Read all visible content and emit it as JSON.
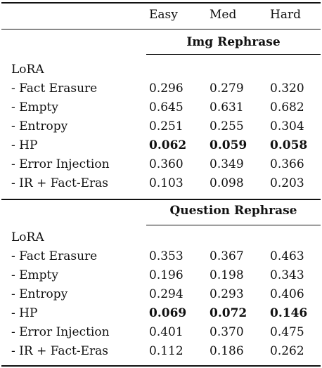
{
  "columns": [
    "Easy",
    "Med",
    "Hard"
  ],
  "sections": [
    {
      "title": "Img Rephrase",
      "group_label": "LoRA",
      "rows": [
        {
          "label": "- Fact Erasure",
          "easy": "0.296",
          "med": "0.279",
          "hard": "0.320",
          "bold": false
        },
        {
          "label": "- Empty",
          "easy": "0.645",
          "med": "0.631",
          "hard": "0.682",
          "bold": false
        },
        {
          "label": "- Entropy",
          "easy": "0.251",
          "med": "0.255",
          "hard": "0.304",
          "bold": false
        },
        {
          "label": "- HP",
          "easy": "0.062",
          "med": "0.059",
          "hard": "0.058",
          "bold": true
        },
        {
          "label": "- Error Injection",
          "easy": "0.360",
          "med": "0.349",
          "hard": "0.366",
          "bold": false
        },
        {
          "label": "- IR + Fact-Eras",
          "easy": "0.103",
          "med": "0.098",
          "hard": "0.203",
          "bold": false
        }
      ]
    },
    {
      "title": "Question Rephrase",
      "group_label": "LoRA",
      "rows": [
        {
          "label": "- Fact Erasure",
          "easy": "0.353",
          "med": "0.367",
          "hard": "0.463",
          "bold": false
        },
        {
          "label": "- Empty",
          "easy": "0.196",
          "med": "0.198",
          "hard": "0.343",
          "bold": false
        },
        {
          "label": "- Entropy",
          "easy": "0.294",
          "med": "0.293",
          "hard": "0.406",
          "bold": false
        },
        {
          "label": "- HP",
          "easy": "0.069",
          "med": "0.072",
          "hard": "0.146",
          "bold": true
        },
        {
          "label": "- Error Injection",
          "easy": "0.401",
          "med": "0.370",
          "hard": "0.475",
          "bold": false
        },
        {
          "label": "- IR + Fact-Eras",
          "easy": "0.112",
          "med": "0.186",
          "hard": "0.262",
          "bold": false
        }
      ]
    }
  ]
}
